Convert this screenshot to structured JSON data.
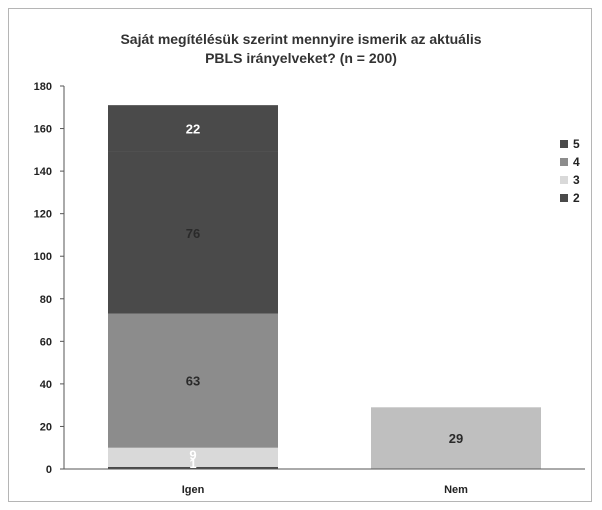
{
  "chart_data": {
    "type": "bar",
    "stacked": true,
    "title_lines": [
      "Saját megítélésük szerint mennyire ismerik az aktuális",
      "PBLS irányelveket? (n = 200)"
    ],
    "categories": [
      "Igen",
      "Nem"
    ],
    "series": [
      {
        "name": "2",
        "color": "#4a4a4a",
        "values": [
          1,
          0
        ]
      },
      {
        "name": "3",
        "color": "#d9d9d9",
        "values": [
          9,
          0
        ]
      },
      {
        "name": "4",
        "color": "#8c8c8c",
        "values": [
          63,
          0
        ]
      },
      {
        "name": "5",
        "color": "#4a4a4a",
        "values": [
          76,
          0
        ]
      },
      {
        "name": "",
        "color": "#4a4a4a",
        "values": [
          22,
          0
        ]
      }
    ],
    "nem_bar": {
      "value": 29,
      "color": "#bfbfbf"
    },
    "data_labels": [
      {
        "category": "Igen",
        "text": "1",
        "value_bottom": 0,
        "value_top": 1
      },
      {
        "category": "Igen",
        "text": "9",
        "value_bottom": 1,
        "value_top": 10
      },
      {
        "category": "Igen",
        "text": "63",
        "value_bottom": 10,
        "value_top": 73
      },
      {
        "category": "Igen",
        "text": "76",
        "value_bottom": 73,
        "value_top": 149
      },
      {
        "category": "Igen",
        "text": "22",
        "value_bottom": 149,
        "value_top": 171
      },
      {
        "category": "Nem",
        "text": "29",
        "value_bottom": 0,
        "value_top": 29
      }
    ],
    "legend": [
      {
        "label": "5",
        "color": "#4a4a4a"
      },
      {
        "label": "4",
        "color": "#8c8c8c"
      },
      {
        "label": "3",
        "color": "#d9d9d9"
      },
      {
        "label": "2",
        "color": "#4a4a4a"
      }
    ],
    "legend_position": "right",
    "ylim": [
      0,
      180
    ],
    "yticks": [
      0,
      20,
      40,
      60,
      80,
      100,
      120,
      140,
      160,
      180
    ],
    "grid": false
  }
}
